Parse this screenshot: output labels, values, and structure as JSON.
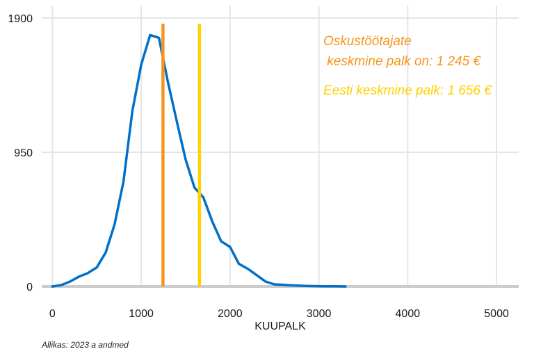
{
  "chart_data": {
    "type": "line",
    "xlabel": "KUUPALK",
    "ylabel": "",
    "caption": "Allikas: 2023 a andmed",
    "xlim": [
      -120,
      5250
    ],
    "ylim": [
      0,
      1900
    ],
    "xticks": [
      0,
      1000,
      2000,
      3000,
      4000,
      5000
    ],
    "yticks": [
      0,
      950,
      1900
    ],
    "grid": true,
    "colors": {
      "line": "#0070c9",
      "baseline": "#cccccc",
      "grid": "#e5e5e5"
    },
    "series": [
      {
        "x": [
          0,
          100,
          200,
          300,
          400,
          500,
          600,
          700,
          800,
          900,
          1000,
          1100,
          1200,
          1300,
          1400,
          1500,
          1600,
          1700,
          1800,
          1900,
          2000,
          2100,
          2200,
          2300,
          2400,
          2500,
          2600,
          2700,
          2800,
          2900,
          3000,
          3100,
          3200,
          3300
        ],
        "y": [
          0,
          10,
          35,
          70,
          95,
          135,
          240,
          440,
          740,
          1240,
          1570,
          1780,
          1760,
          1450,
          1170,
          900,
          700,
          630,
          460,
          320,
          280,
          160,
          125,
          80,
          35,
          15,
          12,
          8,
          5,
          3,
          2,
          1,
          1,
          0
        ]
      }
    ],
    "reference_lines": [
      {
        "x": 1245,
        "color": "#f7941d",
        "label": "Oskustöötajate\n keskmine palk on: 1 245 €"
      },
      {
        "x": 1656,
        "color": "#ffd200",
        "label": "Eesti keskmine palk: 1 656 €"
      }
    ]
  }
}
